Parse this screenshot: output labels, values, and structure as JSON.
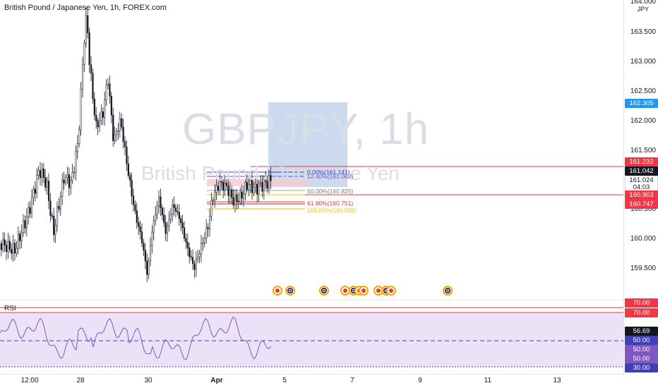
{
  "header": {
    "title": "British Pound / Japanese Yen, 1h, FOREX.com"
  },
  "watermark": {
    "symbol": "GBPJPY, 1h",
    "name": "British Pound / Japanese Yen"
  },
  "rsi": {
    "label": "RSI"
  },
  "price_axis": {
    "currency": "JPY",
    "top_label": "164.000",
    "labels": [
      "163.500",
      "163.000",
      "162.500",
      "162.000",
      "161.500",
      "160.500",
      "160.000",
      "159.500"
    ]
  },
  "badges": {
    "b1": "162.305",
    "b2": "161.232",
    "b3": "161.042",
    "b4": "161.024",
    "b4b": "04:03",
    "b5": "160.903",
    "b6": "160.747",
    "r1": "70.00",
    "r2": "70.00",
    "r3": "56.69",
    "r4": "50.00",
    "r5": "50.00",
    "r6": "50.00",
    "r7": "30.00"
  },
  "colors": {
    "up": "#ffffff",
    "down": "#131722",
    "red_line": "#f23645",
    "blue_badge": "#2196f3",
    "rsi_fill": "#e9ddf6"
  },
  "time_axis": {
    "labels": [
      "12:00",
      "28",
      "30",
      "Apr",
      "5",
      "7",
      "9",
      "11",
      "13"
    ]
  },
  "fib": {
    "f0": "0.00%(161.141)",
    "f1": "12.40%(161.063)",
    "f2": "50.00%(160.825)",
    "f3": "61.80%(160.751)",
    "f4": "100.00%(160.509)"
  },
  "events": [
    {
      "type": "dot-icon"
    },
    {
      "type": "uk-flag-icon"
    },
    {
      "type": "uk-flag-icon"
    },
    {
      "type": "dot-icon"
    },
    {
      "type": "uk-flag-icon"
    },
    {
      "type": "dot-icon"
    },
    {
      "type": "dot-icon"
    },
    {
      "type": "dot-icon"
    },
    {
      "type": "uk-flag-icon"
    },
    {
      "type": "dot-icon"
    },
    {
      "type": "uk-flag-icon"
    }
  ]
}
